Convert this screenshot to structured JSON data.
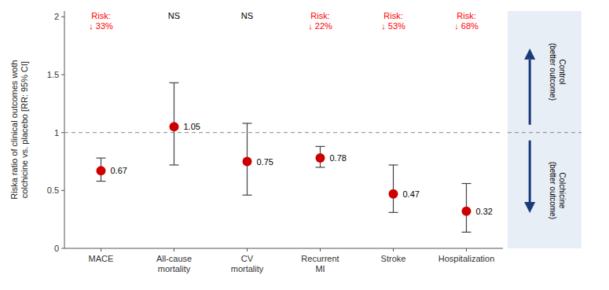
{
  "chart_data": {
    "type": "scatter",
    "categories": [
      "MACE",
      "All-cause\nmortality",
      "CV\nmortality",
      "Recurrent\nMI",
      "Stroke",
      "Hospitalization"
    ],
    "values": [
      0.67,
      1.05,
      0.75,
      0.78,
      0.47,
      0.32
    ],
    "ci_low": [
      0.58,
      0.72,
      0.46,
      0.7,
      0.31,
      0.14
    ],
    "ci_high": [
      0.78,
      1.43,
      1.08,
      0.88,
      0.72,
      0.56
    ],
    "data_labels": true,
    "color": "#cc0000",
    "annotations": [
      {
        "text": "Risk:\n↓ 33%",
        "color": "red"
      },
      {
        "text": "NS",
        "color": "black"
      },
      {
        "text": "NS",
        "color": "black"
      },
      {
        "text": "Risk:\n↓ 22%",
        "color": "red"
      },
      {
        "text": "Risk:\n↓ 53%",
        "color": "red"
      },
      {
        "text": "Risk:\n↓ 68%",
        "color": "red"
      }
    ],
    "reference_line": 1.0,
    "ylabel": "Riska ratio of clinical outcomes woth\ncolchicine vs. placebo [RR: 95% CI]",
    "ylim": [
      0,
      2.05
    ],
    "yticks": [
      0,
      0.5,
      1,
      1.5,
      2
    ],
    "control_label": "Control\n(better outcome)",
    "colchicine_label": "Colchicine\n(better outcome)"
  }
}
